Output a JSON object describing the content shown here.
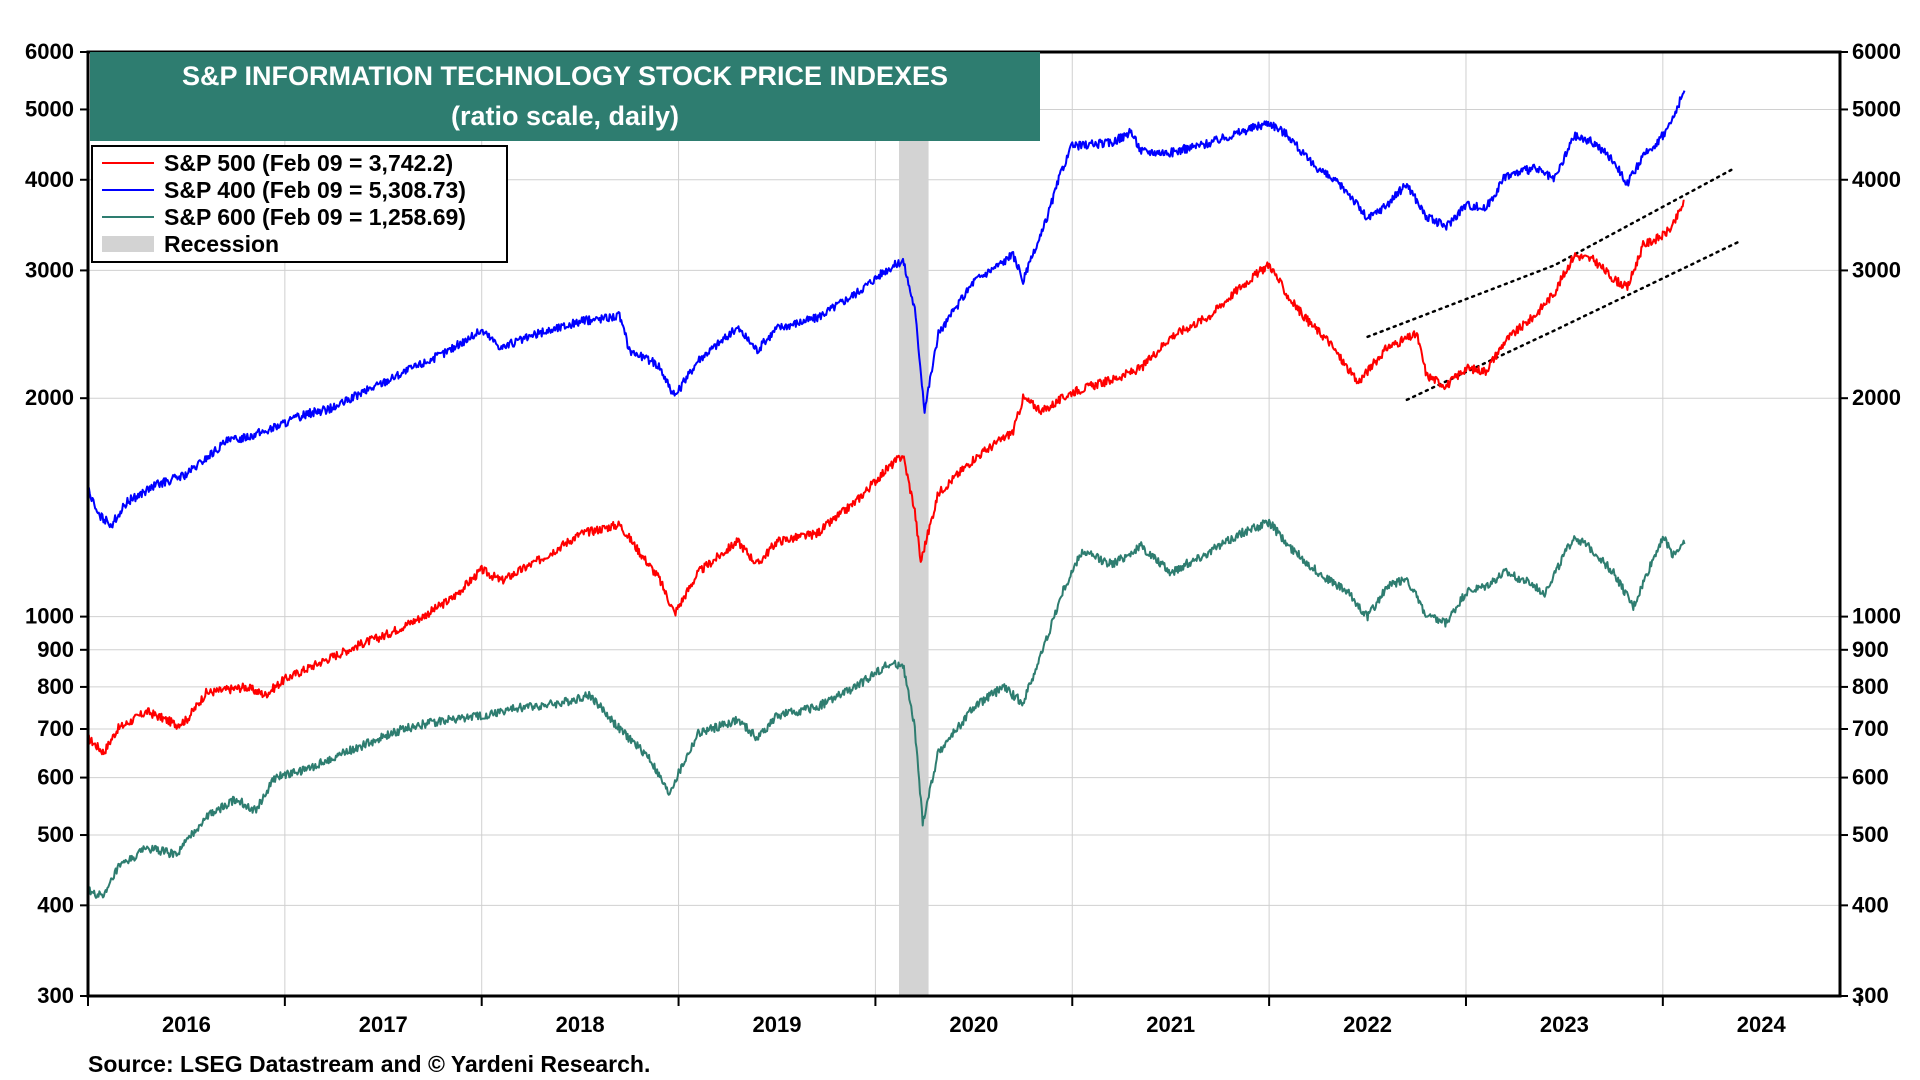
{
  "chart_data": {
    "type": "line",
    "title": "S&P INFORMATION TECHNOLOGY STOCK PRICE INDEXES",
    "subtitle": "(ratio scale, daily)",
    "source": "Source: LSEG Datastream and © Yardeni Research.",
    "y_scale": "log",
    "ylim": [
      300,
      6000
    ],
    "xlim": [
      2016.0,
      2024.9
    ],
    "y_ticks": [
      300,
      400,
      500,
      600,
      700,
      800,
      900,
      1000,
      2000,
      3000,
      4000,
      5000,
      6000
    ],
    "y_tick_labels": [
      "300",
      "400",
      "500",
      "600",
      "700",
      "800",
      "900",
      "1000",
      "2000",
      "3000",
      "4000",
      "5000",
      "6000"
    ],
    "x_tick_labels": [
      "2016",
      "2017",
      "2018",
      "2019",
      "2020",
      "2021",
      "2022",
      "2023",
      "2024"
    ],
    "recession": {
      "label": "Recession",
      "start": 2020.12,
      "end": 2020.27,
      "color": "#d3d3d3"
    },
    "series": [
      {
        "name": "S&P 500 (Feb 09 = 3,742.2)",
        "color": "#ff0000",
        "points": [
          [
            2016.0,
            680
          ],
          [
            2016.08,
            650
          ],
          [
            2016.15,
            700
          ],
          [
            2016.3,
            740
          ],
          [
            2016.45,
            710
          ],
          [
            2016.5,
            720
          ],
          [
            2016.6,
            785
          ],
          [
            2016.8,
            800
          ],
          [
            2016.9,
            780
          ],
          [
            2017.0,
            820
          ],
          [
            2017.2,
            870
          ],
          [
            2017.4,
            920
          ],
          [
            2017.5,
            940
          ],
          [
            2017.7,
            1000
          ],
          [
            2017.85,
            1060
          ],
          [
            2018.0,
            1160
          ],
          [
            2018.1,
            1120
          ],
          [
            2018.3,
            1200
          ],
          [
            2018.5,
            1300
          ],
          [
            2018.7,
            1340
          ],
          [
            2018.78,
            1250
          ],
          [
            2018.9,
            1130
          ],
          [
            2018.98,
            1010
          ],
          [
            2019.1,
            1150
          ],
          [
            2019.3,
            1270
          ],
          [
            2019.4,
            1180
          ],
          [
            2019.5,
            1270
          ],
          [
            2019.7,
            1300
          ],
          [
            2019.9,
            1440
          ],
          [
            2020.05,
            1590
          ],
          [
            2020.14,
            1670
          ],
          [
            2020.2,
            1400
          ],
          [
            2020.23,
            1190
          ],
          [
            2020.32,
            1480
          ],
          [
            2020.5,
            1650
          ],
          [
            2020.7,
            1800
          ],
          [
            2020.75,
            2000
          ],
          [
            2020.85,
            1920
          ],
          [
            2021.0,
            2040
          ],
          [
            2021.2,
            2120
          ],
          [
            2021.35,
            2200
          ],
          [
            2021.5,
            2430
          ],
          [
            2021.7,
            2600
          ],
          [
            2021.85,
            2840
          ],
          [
            2022.0,
            3060
          ],
          [
            2022.1,
            2750
          ],
          [
            2022.2,
            2550
          ],
          [
            2022.3,
            2400
          ],
          [
            2022.45,
            2100
          ],
          [
            2022.6,
            2350
          ],
          [
            2022.75,
            2450
          ],
          [
            2022.8,
            2150
          ],
          [
            2022.9,
            2080
          ],
          [
            2023.0,
            2200
          ],
          [
            2023.1,
            2180
          ],
          [
            2023.2,
            2400
          ],
          [
            2023.35,
            2600
          ],
          [
            2023.45,
            2800
          ],
          [
            2023.55,
            3150
          ],
          [
            2023.65,
            3100
          ],
          [
            2023.75,
            2920
          ],
          [
            2023.82,
            2840
          ],
          [
            2023.9,
            3250
          ],
          [
            2024.0,
            3350
          ],
          [
            2024.05,
            3450
          ],
          [
            2024.11,
            3742
          ]
        ]
      },
      {
        "name": "S&P 400 (Feb 09 = 5,308.73)",
        "color": "#0000ff",
        "points": [
          [
            2016.0,
            1500
          ],
          [
            2016.05,
            1380
          ],
          [
            2016.12,
            1340
          ],
          [
            2016.2,
            1440
          ],
          [
            2016.35,
            1520
          ],
          [
            2016.5,
            1570
          ],
          [
            2016.7,
            1740
          ],
          [
            2016.9,
            1800
          ],
          [
            2017.1,
            1900
          ],
          [
            2017.25,
            1940
          ],
          [
            2017.4,
            2040
          ],
          [
            2017.6,
            2170
          ],
          [
            2017.8,
            2300
          ],
          [
            2018.0,
            2480
          ],
          [
            2018.1,
            2350
          ],
          [
            2018.3,
            2460
          ],
          [
            2018.5,
            2550
          ],
          [
            2018.7,
            2600
          ],
          [
            2018.75,
            2330
          ],
          [
            2018.9,
            2220
          ],
          [
            2018.98,
            2010
          ],
          [
            2019.1,
            2260
          ],
          [
            2019.3,
            2500
          ],
          [
            2019.4,
            2330
          ],
          [
            2019.5,
            2500
          ],
          [
            2019.7,
            2580
          ],
          [
            2019.9,
            2790
          ],
          [
            2020.05,
            3000
          ],
          [
            2020.14,
            3100
          ],
          [
            2020.2,
            2650
          ],
          [
            2020.25,
            1930
          ],
          [
            2020.32,
            2450
          ],
          [
            2020.5,
            2900
          ],
          [
            2020.7,
            3150
          ],
          [
            2020.75,
            2900
          ],
          [
            2020.85,
            3400
          ],
          [
            2020.95,
            4150
          ],
          [
            2021.0,
            4450
          ],
          [
            2021.2,
            4500
          ],
          [
            2021.3,
            4650
          ],
          [
            2021.35,
            4380
          ],
          [
            2021.5,
            4360
          ],
          [
            2021.7,
            4500
          ],
          [
            2021.85,
            4650
          ],
          [
            2022.0,
            4800
          ],
          [
            2022.1,
            4600
          ],
          [
            2022.2,
            4250
          ],
          [
            2022.4,
            3850
          ],
          [
            2022.5,
            3530
          ],
          [
            2022.6,
            3700
          ],
          [
            2022.7,
            3950
          ],
          [
            2022.8,
            3550
          ],
          [
            2022.9,
            3450
          ],
          [
            2023.0,
            3700
          ],
          [
            2023.1,
            3650
          ],
          [
            2023.2,
            4050
          ],
          [
            2023.35,
            4150
          ],
          [
            2023.45,
            4000
          ],
          [
            2023.55,
            4600
          ],
          [
            2023.65,
            4500
          ],
          [
            2023.75,
            4250
          ],
          [
            2023.82,
            3950
          ],
          [
            2023.9,
            4300
          ],
          [
            2024.0,
            4600
          ],
          [
            2024.05,
            4850
          ],
          [
            2024.11,
            5309
          ]
        ]
      },
      {
        "name": "S&P 600 (Feb 09 = 1,258.69)",
        "color": "#2e7d70",
        "points": [
          [
            2016.0,
            420
          ],
          [
            2016.08,
            410
          ],
          [
            2016.15,
            450
          ],
          [
            2016.3,
            480
          ],
          [
            2016.45,
            470
          ],
          [
            2016.6,
            530
          ],
          [
            2016.75,
            560
          ],
          [
            2016.85,
            540
          ],
          [
            2016.95,
            600
          ],
          [
            2017.1,
            615
          ],
          [
            2017.25,
            640
          ],
          [
            2017.4,
            665
          ],
          [
            2017.6,
            700
          ],
          [
            2017.8,
            720
          ],
          [
            2018.0,
            730
          ],
          [
            2018.2,
            750
          ],
          [
            2018.4,
            760
          ],
          [
            2018.55,
            780
          ],
          [
            2018.7,
            700
          ],
          [
            2018.85,
            640
          ],
          [
            2018.95,
            570
          ],
          [
            2019.1,
            690
          ],
          [
            2019.3,
            720
          ],
          [
            2019.4,
            680
          ],
          [
            2019.5,
            730
          ],
          [
            2019.7,
            750
          ],
          [
            2019.9,
            800
          ],
          [
            2020.05,
            855
          ],
          [
            2020.14,
            860
          ],
          [
            2020.2,
            700
          ],
          [
            2020.24,
            520
          ],
          [
            2020.32,
            650
          ],
          [
            2020.5,
            750
          ],
          [
            2020.65,
            800
          ],
          [
            2020.75,
            760
          ],
          [
            2020.85,
            900
          ],
          [
            2020.95,
            1080
          ],
          [
            2021.05,
            1230
          ],
          [
            2021.2,
            1180
          ],
          [
            2021.35,
            1250
          ],
          [
            2021.5,
            1150
          ],
          [
            2021.7,
            1230
          ],
          [
            2021.85,
            1300
          ],
          [
            2022.0,
            1350
          ],
          [
            2022.1,
            1250
          ],
          [
            2022.25,
            1150
          ],
          [
            2022.4,
            1080
          ],
          [
            2022.5,
            1000
          ],
          [
            2022.6,
            1100
          ],
          [
            2022.7,
            1130
          ],
          [
            2022.8,
            1000
          ],
          [
            2022.9,
            980
          ],
          [
            2023.0,
            1080
          ],
          [
            2023.1,
            1100
          ],
          [
            2023.2,
            1150
          ],
          [
            2023.3,
            1120
          ],
          [
            2023.4,
            1080
          ],
          [
            2023.55,
            1290
          ],
          [
            2023.65,
            1230
          ],
          [
            2023.75,
            1150
          ],
          [
            2023.85,
            1030
          ],
          [
            2023.95,
            1200
          ],
          [
            2024.0,
            1290
          ],
          [
            2024.05,
            1220
          ],
          [
            2024.11,
            1259
          ]
        ]
      }
    ],
    "trend_lines": [
      {
        "style": "dotted",
        "points": [
          [
            2022.5,
            2430
          ],
          [
            2023.45,
            3050
          ],
          [
            2024.35,
            4130
          ]
        ]
      },
      {
        "style": "dotted",
        "points": [
          [
            2022.7,
            1990
          ],
          [
            2023.45,
            2480
          ],
          [
            2024.4,
            3300
          ]
        ]
      }
    ],
    "legend": {
      "position": "top-left",
      "entries": [
        {
          "label": "S&P 500 (Feb 09 = 3,742.2)",
          "color": "#ff0000",
          "kind": "line"
        },
        {
          "label": "S&P 400 (Feb 09 = 5,308.73)",
          "color": "#0000ff",
          "kind": "line"
        },
        {
          "label": "S&P 600 (Feb 09 = 1,258.69)",
          "color": "#2e7d70",
          "kind": "line"
        },
        {
          "label": "Recession",
          "color": "#d3d3d3",
          "kind": "band"
        }
      ]
    },
    "title_bg_color": "#2e7d70",
    "grid": true
  }
}
